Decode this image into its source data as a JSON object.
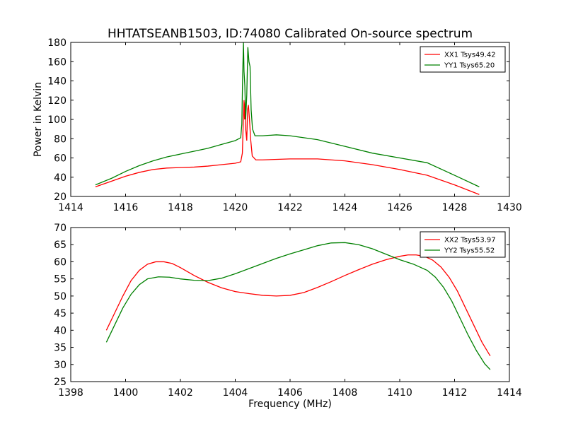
{
  "chart_data": [
    {
      "type": "line",
      "title": "HHTATSEANB1503, ID:74080 Calibrated On-source spectrum",
      "xlabel": "",
      "ylabel": "Power in Kelvin",
      "xlim": [
        1414,
        1430
      ],
      "ylim": [
        20,
        180
      ],
      "xticks": [
        1414,
        1416,
        1418,
        1420,
        1422,
        1424,
        1426,
        1428,
        1430
      ],
      "yticks": [
        20,
        40,
        60,
        80,
        100,
        120,
        140,
        160,
        180
      ],
      "grid": false,
      "legend_position": "top-right",
      "series": [
        {
          "name": "XX1 Tsys49.42",
          "color": "#ff0000",
          "points": [
            [
              1414.9,
              30
            ],
            [
              1415.5,
              36
            ],
            [
              1416,
              41
            ],
            [
              1416.5,
              45
            ],
            [
              1417,
              48
            ],
            [
              1417.5,
              49.5
            ],
            [
              1418,
              50
            ],
            [
              1418.5,
              50.5
            ],
            [
              1419,
              51.5
            ],
            [
              1419.5,
              53
            ],
            [
              1420,
              54.5
            ],
            [
              1420.2,
              56
            ],
            [
              1420.26,
              65
            ],
            [
              1420.29,
              95
            ],
            [
              1420.32,
              120
            ],
            [
              1420.34,
              100
            ],
            [
              1420.36,
              118
            ],
            [
              1420.38,
              90
            ],
            [
              1420.42,
              78
            ],
            [
              1420.45,
              110
            ],
            [
              1420.48,
              115
            ],
            [
              1420.52,
              100
            ],
            [
              1420.56,
              80
            ],
            [
              1420.62,
              62
            ],
            [
              1420.75,
              58
            ],
            [
              1421,
              58
            ],
            [
              1422,
              59
            ],
            [
              1423,
              59
            ],
            [
              1424,
              57
            ],
            [
              1425,
              53
            ],
            [
              1426,
              48
            ],
            [
              1427,
              42
            ],
            [
              1428,
              32
            ],
            [
              1428.9,
              22
            ]
          ]
        },
        {
          "name": "YY1 Tsys65.20",
          "color": "#008000",
          "points": [
            [
              1414.9,
              32
            ],
            [
              1415.5,
              39
            ],
            [
              1416,
              46
            ],
            [
              1416.5,
              52
            ],
            [
              1417,
              57
            ],
            [
              1417.5,
              61
            ],
            [
              1418,
              64
            ],
            [
              1418.5,
              67
            ],
            [
              1419,
              70
            ],
            [
              1419.5,
              74
            ],
            [
              1420,
              78
            ],
            [
              1420.2,
              81
            ],
            [
              1420.24,
              95
            ],
            [
              1420.27,
              145
            ],
            [
              1420.3,
              180
            ],
            [
              1420.32,
              150
            ],
            [
              1420.35,
              135
            ],
            [
              1420.38,
              100
            ],
            [
              1420.42,
              125
            ],
            [
              1420.46,
              175
            ],
            [
              1420.5,
              160
            ],
            [
              1420.54,
              155
            ],
            [
              1420.58,
              110
            ],
            [
              1420.63,
              90
            ],
            [
              1420.72,
              83
            ],
            [
              1421,
              83
            ],
            [
              1421.5,
              84
            ],
            [
              1422,
              83
            ],
            [
              1423,
              79
            ],
            [
              1424,
              72
            ],
            [
              1425,
              65
            ],
            [
              1426,
              60
            ],
            [
              1427,
              55
            ],
            [
              1428,
              42
            ],
            [
              1428.9,
              30
            ]
          ]
        }
      ]
    },
    {
      "type": "line",
      "title": "",
      "xlabel": "Frequency (MHz)",
      "ylabel": "",
      "xlim": [
        1398,
        1414
      ],
      "ylim": [
        25,
        70
      ],
      "xticks": [
        1398,
        1400,
        1402,
        1404,
        1406,
        1408,
        1410,
        1412,
        1414
      ],
      "yticks": [
        25,
        30,
        35,
        40,
        45,
        50,
        55,
        60,
        65,
        70
      ],
      "grid": false,
      "legend_position": "top-right",
      "series": [
        {
          "name": "XX2 Tsys53.97",
          "color": "#ff0000",
          "points": [
            [
              1399.3,
              40
            ],
            [
              1399.6,
              45
            ],
            [
              1399.9,
              50
            ],
            [
              1400.2,
              54.5
            ],
            [
              1400.5,
              57.5
            ],
            [
              1400.8,
              59.3
            ],
            [
              1401.1,
              60
            ],
            [
              1401.4,
              60
            ],
            [
              1401.7,
              59.5
            ],
            [
              1402,
              58.3
            ],
            [
              1402.5,
              56
            ],
            [
              1403,
              54
            ],
            [
              1403.5,
              52.4
            ],
            [
              1404,
              51.3
            ],
            [
              1404.5,
              50.7
            ],
            [
              1405,
              50.2
            ],
            [
              1405.5,
              50
            ],
            [
              1406,
              50.2
            ],
            [
              1406.5,
              51
            ],
            [
              1407,
              52.5
            ],
            [
              1407.5,
              54.2
            ],
            [
              1408,
              56
            ],
            [
              1408.5,
              57.7
            ],
            [
              1409,
              59.3
            ],
            [
              1409.5,
              60.6
            ],
            [
              1410,
              61.6
            ],
            [
              1410.3,
              62
            ],
            [
              1410.6,
              62
            ],
            [
              1410.9,
              61.6
            ],
            [
              1411.2,
              60.5
            ],
            [
              1411.5,
              58.5
            ],
            [
              1411.8,
              55.5
            ],
            [
              1412.1,
              51.5
            ],
            [
              1412.4,
              46.5
            ],
            [
              1412.7,
              41.5
            ],
            [
              1413,
              36.5
            ],
            [
              1413.3,
              32.5
            ]
          ]
        },
        {
          "name": "YY2 Tsys55.52",
          "color": "#008000",
          "points": [
            [
              1399.3,
              36.5
            ],
            [
              1399.6,
              41.5
            ],
            [
              1399.9,
              46.5
            ],
            [
              1400.2,
              50.5
            ],
            [
              1400.5,
              53.3
            ],
            [
              1400.8,
              55
            ],
            [
              1401.2,
              55.6
            ],
            [
              1401.6,
              55.5
            ],
            [
              1402,
              55
            ],
            [
              1402.5,
              54.6
            ],
            [
              1403,
              54.5
            ],
            [
              1403.5,
              55.2
            ],
            [
              1404,
              56.5
            ],
            [
              1404.5,
              58
            ],
            [
              1405,
              59.5
            ],
            [
              1405.5,
              61
            ],
            [
              1406,
              62.3
            ],
            [
              1406.5,
              63.5
            ],
            [
              1407,
              64.7
            ],
            [
              1407.5,
              65.5
            ],
            [
              1408,
              65.6
            ],
            [
              1408.5,
              65
            ],
            [
              1409,
              63.8
            ],
            [
              1409.5,
              62.2
            ],
            [
              1410,
              60.6
            ],
            [
              1410.5,
              59.3
            ],
            [
              1411,
              57.5
            ],
            [
              1411.3,
              55.5
            ],
            [
              1411.6,
              52.5
            ],
            [
              1411.9,
              48.5
            ],
            [
              1412.2,
              43.5
            ],
            [
              1412.5,
              38.5
            ],
            [
              1412.8,
              34
            ],
            [
              1413.1,
              30.2
            ],
            [
              1413.3,
              28.5
            ]
          ]
        }
      ]
    }
  ]
}
